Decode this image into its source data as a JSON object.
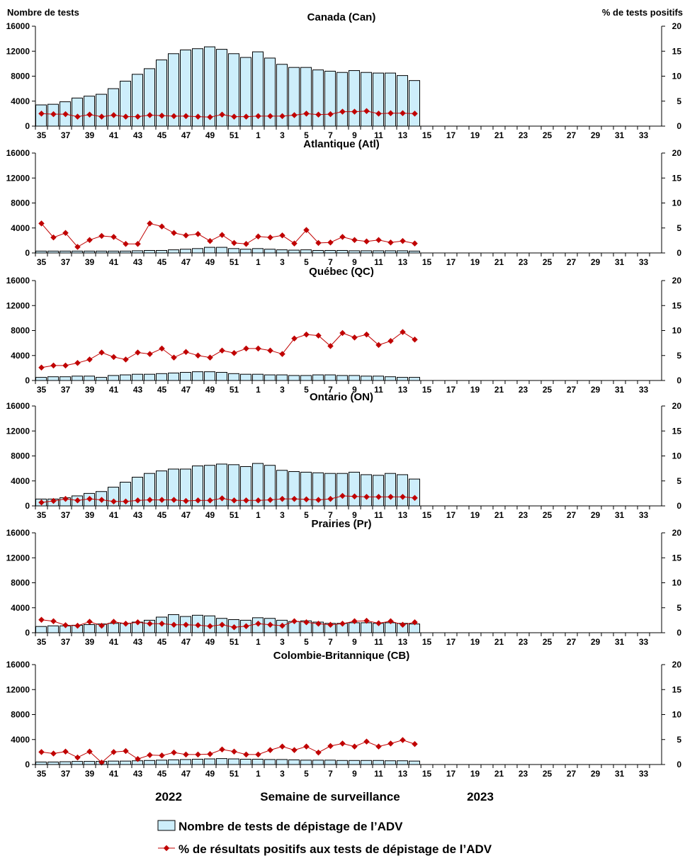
{
  "header": {
    "left_axis_title": "Nombre de tests",
    "right_axis_title": "% de tests positifs"
  },
  "footer": {
    "year_left": "2022",
    "x_axis_title": "Semaine de surveillance",
    "year_right": "2023"
  },
  "legend": {
    "bars_label": "Nombre de tests de dépistage de l’ADV",
    "line_label": "% de résultats positifs aux tests de dépistage de l’ADV"
  },
  "colors": {
    "bar_fill": "#cdeefb",
    "bar_stroke": "#000000",
    "line": "#c00000",
    "axis": "#000000"
  },
  "chart_data": {
    "type": "bar",
    "weeks": [
      35,
      36,
      37,
      38,
      39,
      40,
      41,
      42,
      43,
      44,
      45,
      46,
      47,
      48,
      49,
      50,
      51,
      52,
      1,
      2,
      3,
      4,
      5,
      6,
      7,
      8,
      9,
      10,
      11,
      12,
      13,
      14,
      15,
      16,
      17,
      18,
      19,
      20,
      21,
      22,
      23,
      24,
      25,
      26,
      27,
      28,
      29,
      30,
      31,
      32,
      33,
      34
    ],
    "tick_labels": [
      "35",
      "37",
      "39",
      "41",
      "43",
      "45",
      "47",
      "49",
      "51",
      "1",
      "3",
      "5",
      "7",
      "9",
      "11",
      "13",
      "15",
      "17",
      "19",
      "21",
      "23",
      "25",
      "27",
      "29",
      "31",
      "33"
    ],
    "left_axis": {
      "ylim": [
        0,
        16000
      ],
      "ticks": [
        "0",
        "4000",
        "8000",
        "12000",
        "16000"
      ]
    },
    "right_axis": {
      "ylim": [
        0,
        20
      ],
      "ticks": [
        "0",
        "5",
        "10",
        "15",
        "20"
      ]
    },
    "panels": [
      {
        "title": "Canada (Can)",
        "tests": [
          3400,
          3500,
          3900,
          4500,
          4800,
          5100,
          6000,
          7200,
          8300,
          9200,
          10600,
          11600,
          12200,
          12400,
          12700,
          12300,
          11600,
          11000,
          11900,
          10900,
          9900,
          9400,
          9400,
          9000,
          8800,
          8600,
          8900,
          8600,
          8500,
          8500,
          8100,
          7300
        ],
        "pct_positive": [
          2.5,
          2.4,
          2.4,
          1.9,
          2.3,
          1.9,
          2.2,
          1.9,
          1.9,
          2.2,
          2.1,
          2.0,
          2.0,
          1.9,
          1.8,
          2.3,
          1.9,
          1.9,
          2.0,
          2.0,
          2.0,
          2.2,
          2.5,
          2.3,
          2.4,
          2.9,
          2.9,
          3.0,
          2.5,
          2.6,
          2.6,
          2.5
        ]
      },
      {
        "title": "Atlantique (Atl)",
        "tests": [
          300,
          300,
          300,
          300,
          300,
          300,
          300,
          300,
          350,
          400,
          400,
          500,
          600,
          700,
          900,
          900,
          700,
          600,
          700,
          600,
          500,
          450,
          500,
          400,
          400,
          400,
          350,
          350,
          350,
          350,
          350,
          300
        ],
        "pct_positive": [
          5.9,
          3.1,
          4.0,
          1.2,
          2.6,
          3.4,
          3.2,
          1.8,
          1.8,
          5.9,
          5.3,
          4.0,
          3.5,
          3.8,
          2.4,
          3.6,
          2.0,
          1.8,
          3.3,
          3.1,
          3.5,
          1.9,
          4.6,
          2.0,
          2.1,
          3.2,
          2.6,
          2.3,
          2.6,
          2.1,
          2.4,
          1.9
        ]
      },
      {
        "title": "Québec (QC)",
        "tests": [
          500,
          600,
          600,
          700,
          700,
          500,
          800,
          900,
          1000,
          1000,
          1100,
          1200,
          1300,
          1400,
          1400,
          1300,
          1100,
          1000,
          1000,
          900,
          900,
          800,
          800,
          900,
          900,
          800,
          800,
          700,
          700,
          600,
          500,
          500
        ],
        "pct_positive": [
          2.6,
          3.0,
          3.0,
          3.5,
          4.2,
          5.6,
          4.7,
          4.2,
          5.6,
          5.3,
          6.4,
          4.6,
          5.7,
          5.0,
          4.6,
          6.0,
          5.5,
          6.4,
          6.4,
          6.0,
          5.3,
          8.4,
          9.2,
          9.0,
          6.9,
          9.5,
          8.6,
          9.2,
          7.1,
          7.9,
          9.7,
          8.2
        ]
      },
      {
        "title": "Ontario (ON)",
        "tests": [
          1100,
          1100,
          1300,
          1600,
          2000,
          2300,
          3000,
          3800,
          4600,
          5200,
          5600,
          5900,
          5900,
          6400,
          6500,
          6700,
          6600,
          6300,
          6800,
          6500,
          5700,
          5500,
          5400,
          5300,
          5200,
          5200,
          5400,
          5000,
          4900,
          5200,
          5000,
          4300
        ],
        "pct_positive": [
          0.7,
          1.0,
          1.4,
          1.1,
          1.4,
          1.2,
          0.9,
          0.9,
          1.1,
          1.2,
          1.2,
          1.2,
          1.0,
          1.1,
          1.1,
          1.5,
          1.1,
          1.1,
          1.1,
          1.2,
          1.4,
          1.4,
          1.3,
          1.2,
          1.4,
          2.0,
          1.9,
          1.8,
          1.8,
          1.8,
          1.8,
          1.6
        ]
      },
      {
        "title": "Prairies (Pr)",
        "tests": [
          1000,
          1100,
          1100,
          1200,
          1300,
          1400,
          1500,
          1500,
          1700,
          2000,
          2500,
          2900,
          2600,
          2800,
          2700,
          2300,
          2100,
          2000,
          2400,
          2300,
          2000,
          1800,
          1900,
          1700,
          1500,
          1500,
          1600,
          1600,
          1500,
          1600,
          1500,
          1400
        ],
        "pct_positive": [
          2.6,
          2.3,
          1.5,
          1.4,
          2.2,
          1.4,
          2.2,
          1.8,
          2.1,
          1.8,
          1.8,
          1.6,
          1.6,
          1.5,
          1.3,
          1.6,
          1.1,
          1.3,
          1.8,
          1.6,
          1.4,
          2.3,
          2.1,
          1.8,
          1.6,
          1.8,
          2.3,
          2.4,
          1.9,
          2.3,
          1.6,
          2.1
        ]
      },
      {
        "title": "Colombie-Britannique (CB)",
        "tests": [
          400,
          400,
          450,
          500,
          500,
          500,
          550,
          550,
          600,
          650,
          700,
          750,
          800,
          850,
          900,
          950,
          900,
          850,
          850,
          800,
          800,
          750,
          700,
          700,
          700,
          650,
          650,
          650,
          650,
          600,
          600,
          550
        ],
        "pct_positive": [
          2.5,
          2.2,
          2.6,
          1.4,
          2.6,
          0.4,
          2.5,
          2.7,
          1.1,
          1.9,
          1.8,
          2.4,
          2.0,
          2.0,
          2.1,
          3.0,
          2.6,
          2.0,
          2.0,
          2.9,
          3.6,
          2.9,
          3.6,
          2.4,
          3.7,
          4.2,
          3.6,
          4.6,
          3.6,
          4.2,
          4.9,
          4.1
        ]
      }
    ]
  }
}
